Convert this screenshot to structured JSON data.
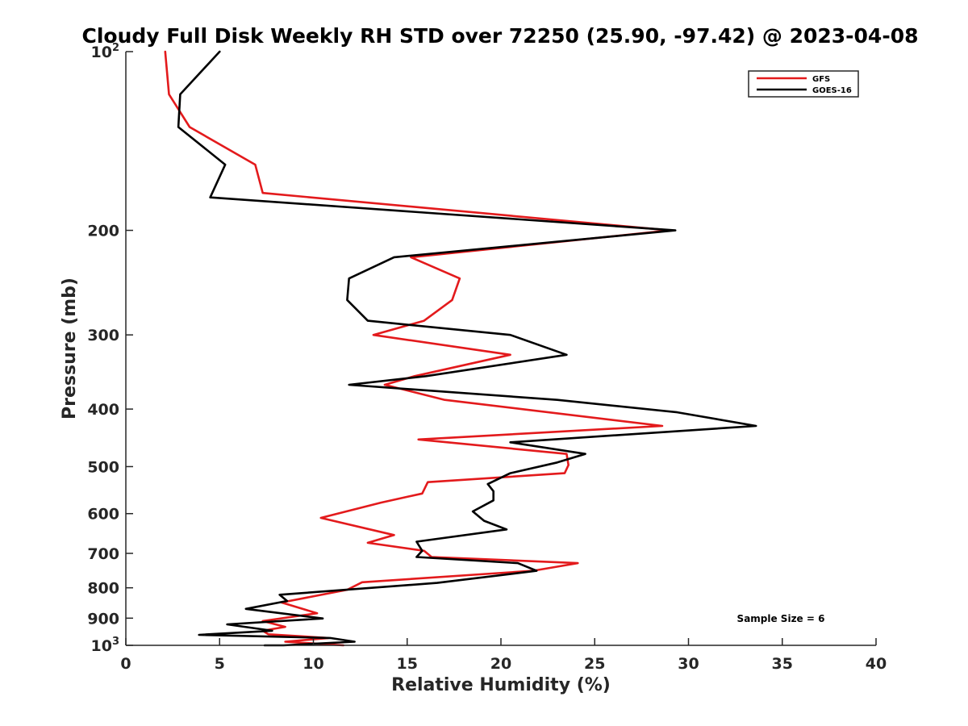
{
  "chart_data": {
    "type": "line",
    "title": "Cloudy Full Disk Weekly RH STD over 72250 (25.90, -97.42) @ 2023-04-08",
    "xlabel": "Relative Humidity (%)",
    "ylabel": "Pressure (mb)",
    "xlim": [
      0,
      40
    ],
    "ylim": [
      100,
      1000
    ],
    "y_scale": "log",
    "y_reversed": true,
    "grid": false,
    "legend_position": "top-right",
    "x_ticks": [
      "0",
      "5",
      "10",
      "15",
      "20",
      "25",
      "30",
      "35",
      "40"
    ],
    "y_ticks": [
      {
        "value": 100,
        "label": "10",
        "sup": "2"
      },
      {
        "value": 200,
        "label": "200",
        "sup": ""
      },
      {
        "value": 300,
        "label": "300",
        "sup": ""
      },
      {
        "value": 400,
        "label": "400",
        "sup": ""
      },
      {
        "value": 500,
        "label": "500",
        "sup": ""
      },
      {
        "value": 600,
        "label": "600",
        "sup": ""
      },
      {
        "value": 700,
        "label": "700",
        "sup": ""
      },
      {
        "value": 800,
        "label": "800",
        "sup": ""
      },
      {
        "value": 900,
        "label": "900",
        "sup": ""
      },
      {
        "value": 1000,
        "label": "10",
        "sup": "3"
      }
    ],
    "annotation": "Sample Size = 6",
    "series": [
      {
        "name": "GFS",
        "color": "#e31a1c",
        "points": [
          [
            2.1,
            100
          ],
          [
            2.3,
            118
          ],
          [
            3.4,
            134
          ],
          [
            6.9,
            155
          ],
          [
            7.3,
            173
          ],
          [
            29.0,
            200
          ],
          [
            15.2,
            222
          ],
          [
            17.8,
            241
          ],
          [
            17.4,
            262
          ],
          [
            15.9,
            284
          ],
          [
            13.2,
            300
          ],
          [
            20.5,
            324
          ],
          [
            15.4,
            352
          ],
          [
            13.8,
            364
          ],
          [
            17.0,
            386
          ],
          [
            28.6,
            427
          ],
          [
            15.6,
            450
          ],
          [
            23.5,
            476
          ],
          [
            23.6,
            497
          ],
          [
            23.4,
            513
          ],
          [
            16.1,
            531
          ],
          [
            15.8,
            555
          ],
          [
            13.6,
            575
          ],
          [
            10.4,
            610
          ],
          [
            14.3,
            652
          ],
          [
            12.9,
            672
          ],
          [
            15.9,
            693
          ],
          [
            16.3,
            710
          ],
          [
            24.1,
            727
          ],
          [
            21.7,
            749
          ],
          [
            12.6,
            783
          ],
          [
            11.8,
            806
          ],
          [
            8.3,
            847
          ],
          [
            10.2,
            883
          ],
          [
            7.3,
            910
          ],
          [
            8.5,
            931
          ],
          [
            7.3,
            945
          ],
          [
            7.6,
            958
          ],
          [
            10.8,
            972
          ],
          [
            8.5,
            986
          ],
          [
            11.6,
            1000
          ]
        ]
      },
      {
        "name": "GOES-16",
        "color": "#000000",
        "points": [
          [
            5.0,
            100
          ],
          [
            2.9,
            118
          ],
          [
            2.8,
            134
          ],
          [
            5.3,
            155
          ],
          [
            4.5,
            176
          ],
          [
            29.3,
            200
          ],
          [
            14.3,
            222
          ],
          [
            11.9,
            241
          ],
          [
            11.8,
            262
          ],
          [
            12.9,
            284
          ],
          [
            20.5,
            300
          ],
          [
            23.5,
            324
          ],
          [
            16.0,
            352
          ],
          [
            11.9,
            364
          ],
          [
            23.0,
            386
          ],
          [
            29.4,
            405
          ],
          [
            33.6,
            427
          ],
          [
            20.5,
            455
          ],
          [
            24.5,
            476
          ],
          [
            23.0,
            492
          ],
          [
            20.5,
            513
          ],
          [
            19.3,
            535
          ],
          [
            19.6,
            550
          ],
          [
            19.6,
            570
          ],
          [
            18.5,
            595
          ],
          [
            19.1,
            617
          ],
          [
            20.3,
            638
          ],
          [
            15.5,
            669
          ],
          [
            15.8,
            693
          ],
          [
            15.5,
            710
          ],
          [
            20.9,
            727
          ],
          [
            21.9,
            749
          ],
          [
            16.6,
            785
          ],
          [
            8.2,
            822
          ],
          [
            8.6,
            842
          ],
          [
            6.4,
            868
          ],
          [
            10.5,
            901
          ],
          [
            5.4,
            922
          ],
          [
            7.8,
            945
          ],
          [
            3.9,
            960
          ],
          [
            10.9,
            972
          ],
          [
            12.2,
            986
          ],
          [
            8.4,
            1000
          ],
          [
            7.4,
            1000
          ]
        ]
      }
    ]
  }
}
